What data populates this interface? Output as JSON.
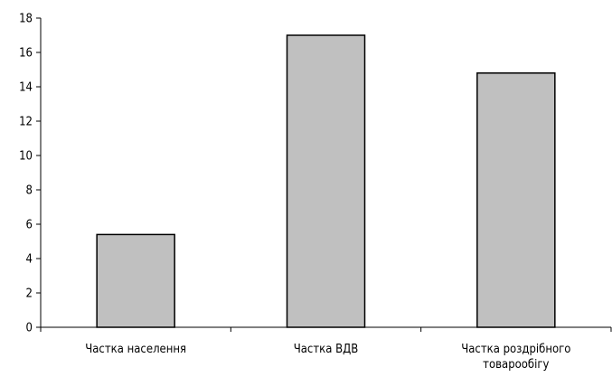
{
  "chart_data": {
    "type": "bar",
    "categories": [
      [
        "Частка населення"
      ],
      [
        "Частка ВДВ"
      ],
      [
        "Частка роздрібного",
        "товарообігу"
      ]
    ],
    "values": [
      5.4,
      17.0,
      14.8
    ],
    "ylim": [
      0,
      18
    ],
    "yticks": [
      0,
      2,
      4,
      6,
      8,
      10,
      12,
      14,
      16,
      18
    ],
    "grid": false,
    "legend": "none",
    "colors": {
      "bar_fill": "#c0c0c0",
      "bar_stroke": "#000000",
      "axis": "#000000"
    }
  }
}
